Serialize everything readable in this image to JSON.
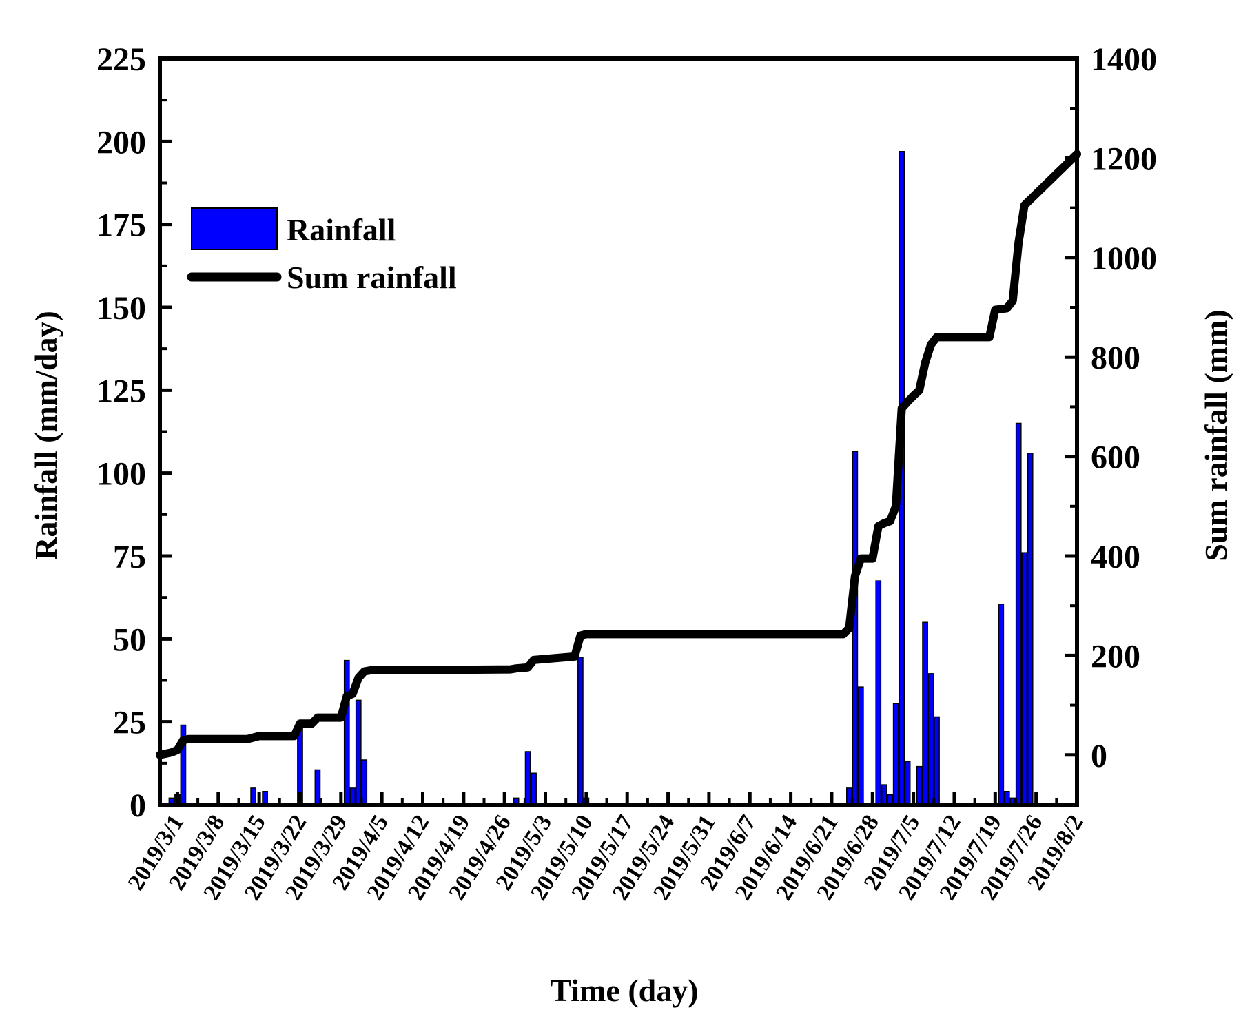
{
  "chart_data": {
    "type": "bar",
    "xlabel": "Time (day)",
    "ylabel": "Rainfall (mm/day)",
    "y2label": "Sum rainfall (mm)",
    "ylim": [
      0,
      225
    ],
    "y2lim": [
      -100,
      1400
    ],
    "yticks": [
      0,
      25,
      50,
      75,
      100,
      125,
      150,
      175,
      200,
      225
    ],
    "y2ticks": [
      0,
      200,
      400,
      600,
      800,
      1000,
      1200,
      1400
    ],
    "xlim": [
      "2019-02-26",
      "2019-08-02"
    ],
    "xticks": [
      "2019-03-01",
      "2019-03-08",
      "2019-03-15",
      "2019-03-22",
      "2019-03-29",
      "2019-04-05",
      "2019-04-12",
      "2019-04-19",
      "2019-04-26",
      "2019-05-03",
      "2019-05-10",
      "2019-05-17",
      "2019-05-24",
      "2019-05-31",
      "2019-06-07",
      "2019-06-14",
      "2019-06-21",
      "2019-06-28",
      "2019-07-05",
      "2019-07-12",
      "2019-07-19",
      "2019-07-26",
      "2019-08-02"
    ],
    "xtick_labels": [
      "2019/3/1",
      "2019/3/8",
      "2019/3/15",
      "2019/3/22",
      "2019/3/29",
      "2019/4/5",
      "2019/4/12",
      "2019/4/19",
      "2019/4/26",
      "2019/5/3",
      "2019/5/10",
      "2019/5/17",
      "2019/5/24",
      "2019/5/31",
      "2019/6/7",
      "2019/6/14",
      "2019/6/21",
      "2019/6/28",
      "2019/7/5",
      "2019/7/12",
      "2019/7/19",
      "2019/7/26",
      "2019/8/2"
    ],
    "legend_position": "upper-left",
    "colors": {
      "bar_fill": "#0000ff",
      "bar_stroke": "#000000",
      "line": "#000000"
    },
    "series": [
      {
        "name": "Rainfall",
        "kind": "bar",
        "axis": "left",
        "x": [
          "2019-02-28",
          "2019-03-01",
          "2019-03-02",
          "2019-03-14",
          "2019-03-16",
          "2019-03-22",
          "2019-03-25",
          "2019-03-30",
          "2019-03-31",
          "2019-04-01",
          "2019-04-02",
          "2019-04-28",
          "2019-04-30",
          "2019-05-01",
          "2019-05-09",
          "2019-05-10",
          "2019-06-24",
          "2019-06-25",
          "2019-06-26",
          "2019-06-29",
          "2019-06-30",
          "2019-07-01",
          "2019-07-02",
          "2019-07-03",
          "2019-07-04",
          "2019-07-06",
          "2019-07-07",
          "2019-07-08",
          "2019-07-09",
          "2019-07-20",
          "2019-07-21",
          "2019-07-22",
          "2019-07-23",
          "2019-07-24",
          "2019-07-25"
        ],
        "values": [
          2,
          3,
          24,
          5,
          4,
          25,
          10.5,
          43.5,
          5,
          31.5,
          13.5,
          2,
          16,
          9.5,
          44.5,
          2,
          5,
          106.5,
          35.5,
          67.5,
          6,
          3,
          30.5,
          197,
          13,
          11.5,
          55,
          39.5,
          26.5,
          60.5,
          4,
          2,
          115,
          76,
          106
        ]
      },
      {
        "name": "Sum rainfall",
        "kind": "line",
        "axis": "right",
        "x": [
          "2019-02-26",
          "2019-02-28",
          "2019-03-01",
          "2019-03-02",
          "2019-03-03",
          "2019-03-13",
          "2019-03-14",
          "2019-03-15",
          "2019-03-16",
          "2019-03-21",
          "2019-03-22",
          "2019-03-24",
          "2019-03-25",
          "2019-03-29",
          "2019-03-30",
          "2019-03-31",
          "2019-04-01",
          "2019-04-02",
          "2019-04-03",
          "2019-04-27",
          "2019-04-28",
          "2019-04-30",
          "2019-05-01",
          "2019-05-08",
          "2019-05-09",
          "2019-05-10",
          "2019-06-23",
          "2019-06-24",
          "2019-06-25",
          "2019-06-26",
          "2019-06-28",
          "2019-06-29",
          "2019-06-30",
          "2019-07-01",
          "2019-07-02",
          "2019-07-03",
          "2019-07-04",
          "2019-07-05",
          "2019-07-06",
          "2019-07-07",
          "2019-07-08",
          "2019-07-09",
          "2019-07-18",
          "2019-07-19",
          "2019-07-21",
          "2019-07-22",
          "2019-07-23",
          "2019-07-24",
          "2019-08-02"
        ],
        "values": [
          0,
          5,
          10,
          30,
          32,
          32,
          35,
          38,
          38,
          38,
          63,
          63,
          75,
          75,
          118,
          123,
          155,
          168,
          170,
          172,
          174,
          176,
          191,
          198,
          240,
          243,
          243,
          255,
          360,
          395,
          395,
          460,
          466,
          470,
          500,
          697,
          710,
          722,
          733,
          788,
          825,
          840,
          840,
          895,
          898,
          913,
          1030,
          1105,
          1208
        ]
      }
    ]
  }
}
